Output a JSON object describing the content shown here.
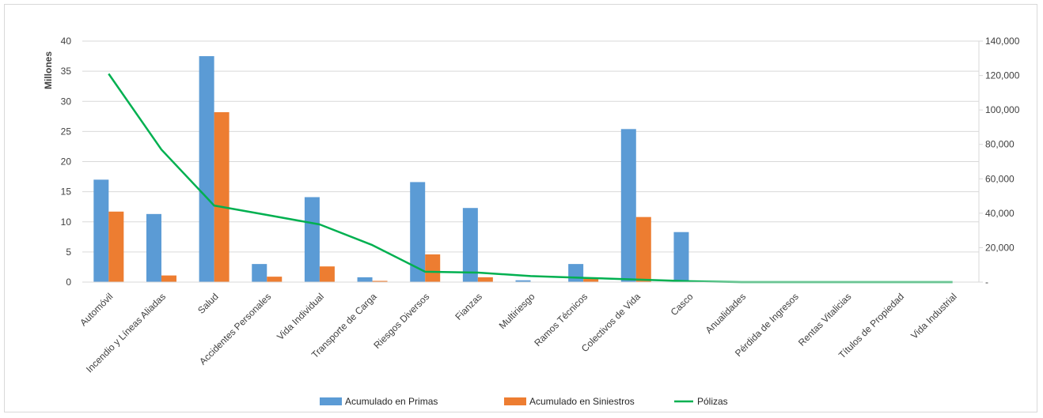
{
  "chart_data": {
    "type": "bar",
    "categories": [
      "Automóvil",
      "Incendio y Líneas Aliadas",
      "Salud",
      "Accidentes Personales",
      "Vida Individual",
      "Transporte de Carga",
      "Riesgos  Diversos",
      "Fianzas",
      "Multiriesgo",
      "Ramos Técnicos",
      "Colectivos de Vida",
      "Casco",
      "Anualidades",
      "Pérdida de Ingresos",
      "Rentas Vitalicias",
      "Títulos de Propiedad",
      "Vida Industrial"
    ],
    "series": [
      {
        "name": "Acumulado en Primas",
        "type": "bar",
        "axis": "left",
        "color": "#5b9bd5",
        "values": [
          17.0,
          11.3,
          37.5,
          3.0,
          14.1,
          0.8,
          16.6,
          12.3,
          0.3,
          3.0,
          25.4,
          8.3,
          0.05,
          0.0,
          0.0,
          0.0,
          0.0
        ]
      },
      {
        "name": "Acumulado en Siniestros",
        "type": "bar",
        "axis": "left",
        "color": "#ed7d31",
        "values": [
          11.7,
          1.1,
          28.2,
          0.9,
          2.6,
          0.2,
          4.6,
          0.8,
          0.0,
          0.6,
          10.8,
          0.0,
          0.0,
          0.0,
          0.0,
          0.0,
          0.0
        ]
      },
      {
        "name": "Pólizas",
        "type": "line",
        "axis": "right",
        "color": "#00b050",
        "values": [
          121000,
          77000,
          44500,
          39000,
          33500,
          21500,
          6000,
          5500,
          3500,
          2500,
          1500,
          500,
          0,
          0,
          0,
          0,
          0
        ]
      }
    ],
    "ylabel": "Millones",
    "ylim": [
      0,
      40
    ],
    "yticks": [
      "0",
      "5",
      "10",
      "15",
      "20",
      "25",
      "30",
      "35",
      "40"
    ],
    "y2lim": [
      0,
      140000
    ],
    "y2ticks": [
      "-",
      "20,000",
      "40,000",
      "60,000",
      "80,000",
      "100,000",
      "120,000",
      "140,000"
    ],
    "grid": true,
    "legend_position": "bottom"
  }
}
